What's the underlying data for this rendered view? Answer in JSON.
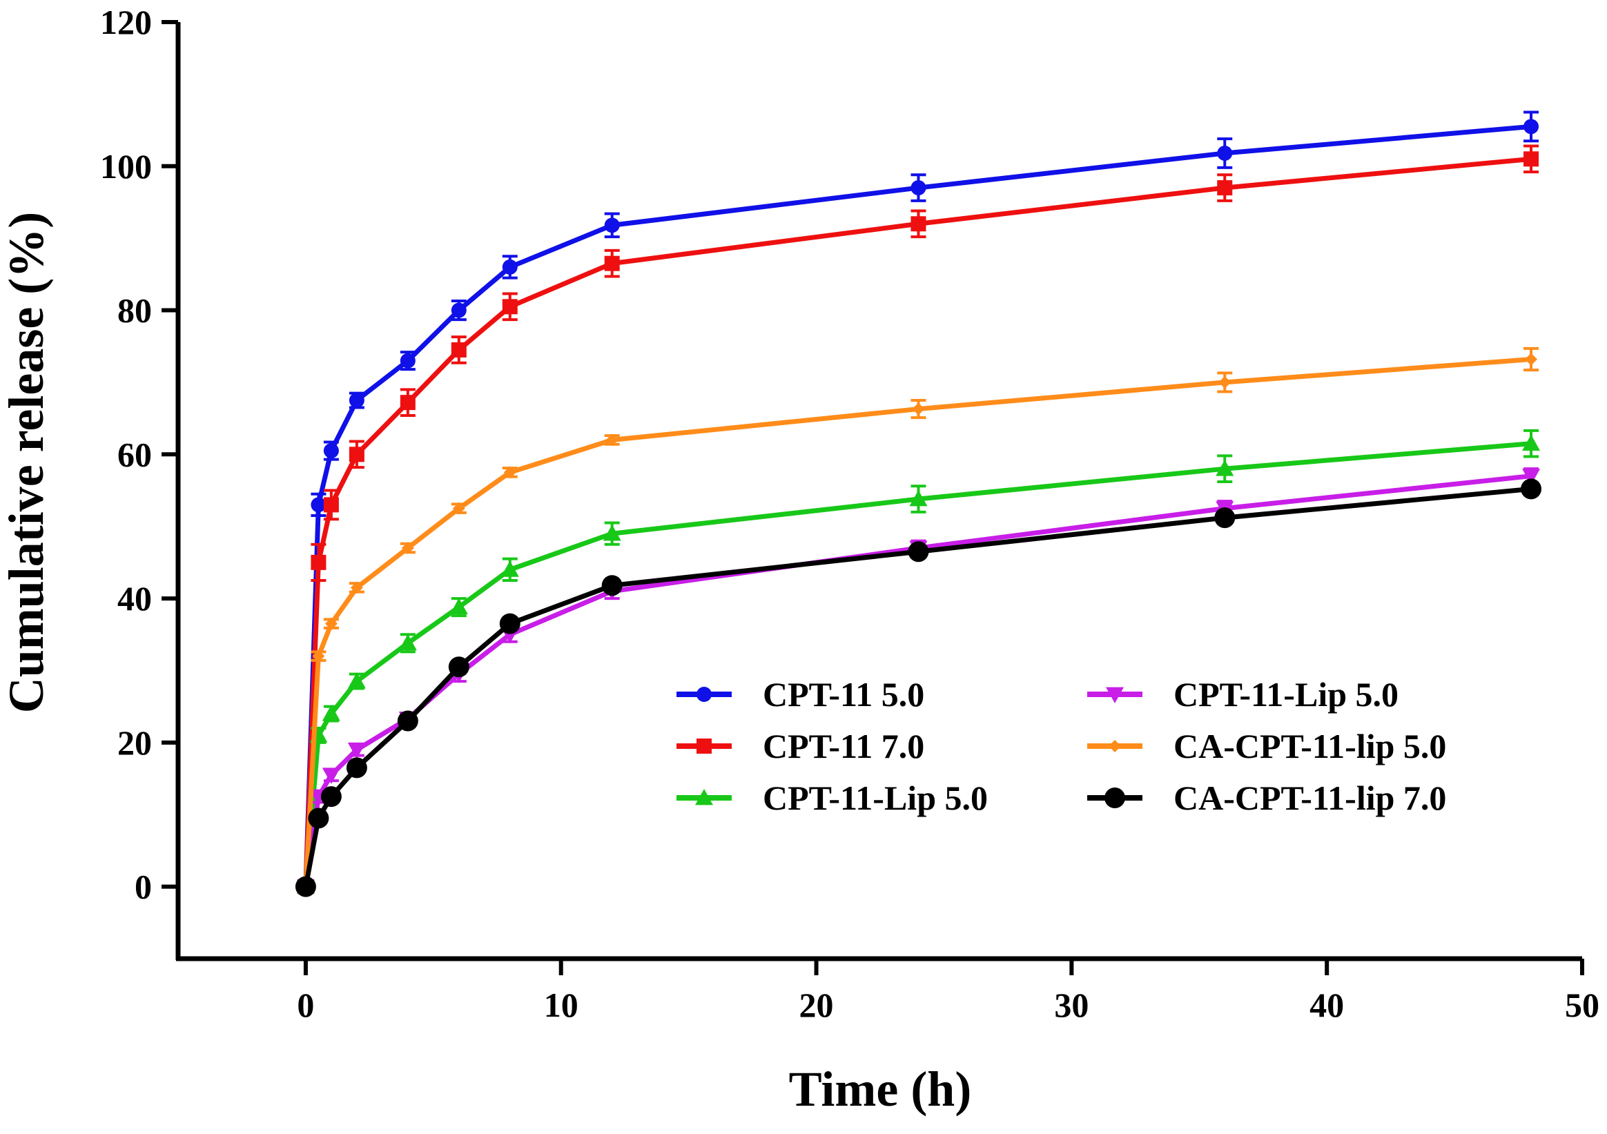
{
  "chart_data": {
    "type": "line",
    "title": "",
    "xlabel": "Time (h)",
    "ylabel": "Cumulative release (%)",
    "xlim": [
      -5,
      50
    ],
    "ylim": [
      -10,
      120
    ],
    "xticks": [
      0,
      10,
      20,
      30,
      40,
      50
    ],
    "yticks": [
      0,
      20,
      40,
      60,
      80,
      100,
      120
    ],
    "x": [
      0,
      0.5,
      1,
      2,
      4,
      6,
      8,
      12,
      24,
      36,
      48
    ],
    "legend_position": "lower-right",
    "series": [
      {
        "name": "CPT-11 5.0",
        "color": "#1010e8",
        "marker": "circle",
        "values": [
          0,
          53,
          60.5,
          67.5,
          73,
          80,
          86,
          91.8,
          97,
          101.8,
          105.5
        ],
        "errors": [
          0.5,
          1.5,
          1.2,
          1.0,
          1.2,
          1.3,
          1.5,
          1.6,
          1.8,
          2.0,
          2.0
        ]
      },
      {
        "name": "CPT-11 7.0",
        "color": "#ee1010",
        "marker": "square",
        "values": [
          0,
          45,
          53,
          60,
          67.2,
          74.5,
          80.5,
          86.5,
          92,
          97,
          101
        ],
        "errors": [
          0.5,
          2.5,
          2.0,
          1.8,
          1.8,
          1.8,
          1.8,
          1.8,
          1.8,
          1.8,
          1.8
        ]
      },
      {
        "name": "CPT-11-Lip 5.0",
        "color": "#18c818",
        "marker": "triangle-up",
        "values": [
          0,
          21,
          24,
          28.5,
          33.8,
          38.8,
          44,
          49,
          53.8,
          58,
          61.5
        ],
        "errors": [
          0.3,
          1.0,
          1.0,
          1.0,
          1.2,
          1.2,
          1.5,
          1.5,
          1.8,
          1.8,
          1.8
        ]
      },
      {
        "name": "CPT-11-Lip 5.0",
        "color": "#c81ee8",
        "marker": "triangle-down",
        "values": [
          0,
          12.5,
          15.5,
          19,
          23.3,
          29.5,
          35,
          41,
          47,
          52.5,
          57
        ],
        "errors": [
          0.3,
          0.8,
          0.8,
          0.8,
          0.8,
          1.0,
          1.0,
          1.0,
          1.0,
          1.0,
          1.0
        ]
      },
      {
        "name": "CA-CPT-11-lip 5.0",
        "color": "#ff8c1a",
        "marker": "diamond",
        "values": [
          0,
          32,
          36.5,
          41.5,
          47,
          52.5,
          57.5,
          62,
          66.3,
          70,
          73.2
        ],
        "errors": [
          0.3,
          0.6,
          0.6,
          0.6,
          0.6,
          0.6,
          0.6,
          0.6,
          1.2,
          1.3,
          1.5
        ]
      },
      {
        "name": "CA-CPT-11-lip 7.0",
        "color": "#000000",
        "marker": "circle-large",
        "values": [
          0,
          9.5,
          12.5,
          16.5,
          23,
          30.5,
          36.5,
          41.8,
          46.5,
          51.2,
          55.2
        ],
        "errors": [
          0.3,
          0.8,
          0.8,
          0.8,
          0.8,
          0.8,
          0.8,
          0.8,
          0.8,
          0.8,
          0.8
        ]
      }
    ]
  }
}
